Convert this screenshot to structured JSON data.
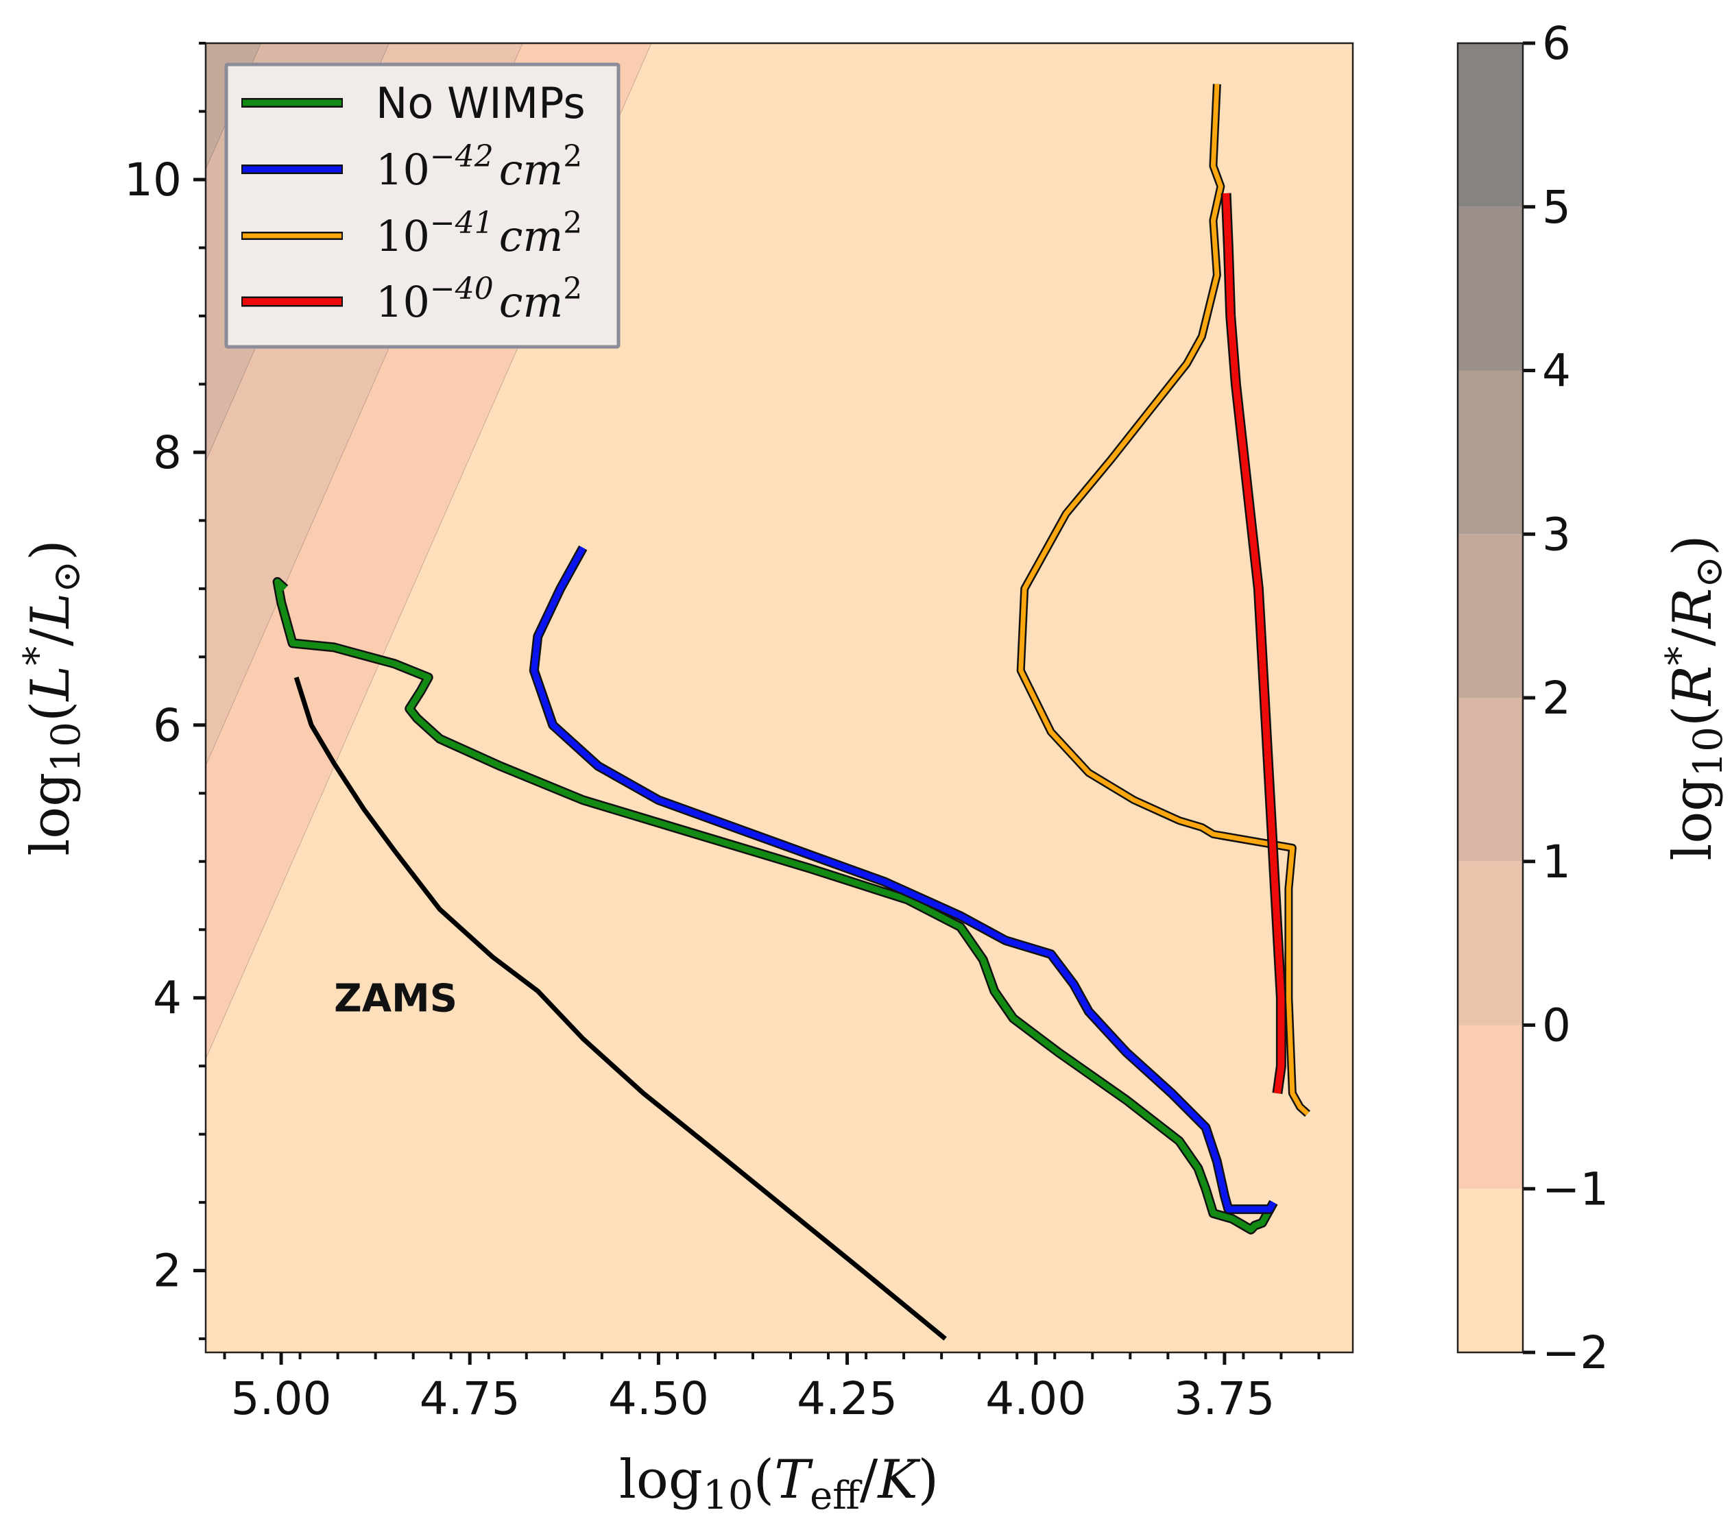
{
  "chart_data": {
    "type": "line",
    "title": "",
    "xlabel": "log10(Teff/K)",
    "ylabel": "log10(L*/L⊙)",
    "xlim": [
      5.1,
      3.58
    ],
    "ylim": [
      1.4,
      11.0
    ],
    "x_ticks": [
      5.0,
      4.75,
      4.5,
      4.25,
      4.0,
      3.75
    ],
    "x_tick_labels": [
      "5.00",
      "4.75",
      "4.50",
      "4.25",
      "4.00",
      "3.75"
    ],
    "y_ticks": [
      2,
      4,
      6,
      8,
      10
    ],
    "y_tick_labels": [
      "2",
      "4",
      "6",
      "8",
      "10"
    ],
    "colorbar": {
      "label": "log10(R*/R⊙)",
      "levels": [
        -2,
        -1,
        0,
        1,
        2,
        3,
        4,
        5,
        6
      ],
      "tick_labels": [
        "−2",
        "−1",
        "0",
        "1",
        "2",
        "3",
        "4",
        "5",
        "6"
      ],
      "colors": [
        "#fddfbc",
        "#fbcdb0",
        "#ebc2ac",
        "#d9b7a4",
        "#c4aa9a",
        "#b09e93",
        "#9a8f8a",
        "#868380"
      ]
    },
    "legend": {
      "position": "upper-left",
      "entries": [
        {
          "label": "No WIMPs",
          "series": "nowimps",
          "style": "text"
        },
        {
          "label": "10",
          "sup": "−42",
          "unit": "cm",
          "unit_sup": "2",
          "series": "s42",
          "style": "math"
        },
        {
          "label": "10",
          "sup": "−41",
          "unit": "cm",
          "unit_sup": "2",
          "series": "s41",
          "style": "math"
        },
        {
          "label": "10",
          "sup": "−40",
          "unit": "cm",
          "unit_sup": "2",
          "series": "s40",
          "style": "math"
        }
      ]
    },
    "annotations": [
      {
        "text": "ZAMS",
        "x": 4.93,
        "y": 4.0
      }
    ],
    "series": [
      {
        "id": "zams",
        "name": "ZAMS",
        "color": "#000000",
        "width": 7,
        "outline": false,
        "x": [
          4.98,
          4.96,
          4.93,
          4.89,
          4.85,
          4.79,
          4.72,
          4.66,
          4.6,
          4.52,
          4.43,
          4.33,
          4.23,
          4.12
        ],
        "y": [
          6.35,
          6.0,
          5.72,
          5.38,
          5.08,
          4.65,
          4.3,
          4.05,
          3.7,
          3.3,
          2.9,
          2.45,
          2.0,
          1.5
        ]
      },
      {
        "id": "nowimps",
        "name": "No WIMPs",
        "color": "#138a13",
        "width": 9,
        "outline": true,
        "x": [
          4.995,
          5.005,
          5.0,
          4.985,
          4.93,
          4.85,
          4.805,
          4.815,
          4.83,
          4.82,
          4.79,
          4.71,
          4.6,
          4.45,
          4.3,
          4.17,
          4.1,
          4.07,
          4.055,
          4.03,
          3.97,
          3.88,
          3.81,
          3.785,
          3.775,
          3.765,
          3.74,
          3.715,
          3.71,
          3.7,
          3.695,
          3.69
        ],
        "y": [
          7.0,
          7.05,
          6.9,
          6.6,
          6.57,
          6.45,
          6.35,
          6.25,
          6.12,
          6.05,
          5.9,
          5.7,
          5.45,
          5.2,
          4.95,
          4.72,
          4.52,
          4.28,
          4.05,
          3.85,
          3.6,
          3.25,
          2.95,
          2.75,
          2.6,
          2.42,
          2.38,
          2.3,
          2.33,
          2.35,
          2.4,
          2.45
        ]
      },
      {
        "id": "s42",
        "name": "10^-42 cm^2",
        "color": "#0a14f0",
        "width": 9,
        "outline": true,
        "x": [
          4.6,
          4.63,
          4.66,
          4.665,
          4.64,
          4.58,
          4.5,
          4.4,
          4.3,
          4.2,
          4.1,
          4.04,
          3.98,
          3.95,
          3.93,
          3.88,
          3.82,
          3.775,
          3.76,
          3.75,
          3.745,
          3.73,
          3.71,
          3.69,
          3.685
        ],
        "y": [
          7.3,
          7.0,
          6.65,
          6.4,
          6.0,
          5.7,
          5.45,
          5.25,
          5.05,
          4.85,
          4.6,
          4.42,
          4.32,
          4.1,
          3.9,
          3.6,
          3.3,
          3.05,
          2.8,
          2.55,
          2.45,
          2.45,
          2.45,
          2.45,
          2.5
        ]
      },
      {
        "id": "s41",
        "name": "10^-41 cm^2",
        "color": "#fda70e",
        "width": 7,
        "outline": true,
        "x": [
          3.76,
          3.765,
          3.755,
          3.765,
          3.76,
          3.78,
          3.8,
          3.85,
          3.9,
          3.96,
          4.015,
          4.02,
          3.98,
          3.93,
          3.87,
          3.81,
          3.78,
          3.765,
          3.66,
          3.665,
          3.665,
          3.66,
          3.65,
          3.64
        ],
        "y": [
          10.7,
          10.1,
          9.95,
          9.7,
          9.3,
          8.85,
          8.65,
          8.3,
          7.95,
          7.55,
          7.0,
          6.4,
          5.95,
          5.65,
          5.45,
          5.3,
          5.25,
          5.2,
          5.1,
          4.8,
          4.0,
          3.3,
          3.2,
          3.15
        ]
      },
      {
        "id": "s40",
        "name": "10^-40 cm^2",
        "color": "#ef0a0a",
        "width": 10,
        "outline": true,
        "x": [
          3.748,
          3.745,
          3.742,
          3.735,
          3.725,
          3.715,
          3.705,
          3.7,
          3.695,
          3.69,
          3.685,
          3.68,
          3.675,
          3.675,
          3.68
        ],
        "y": [
          9.9,
          9.5,
          9.0,
          8.5,
          8.0,
          7.5,
          7.0,
          6.5,
          6.0,
          5.5,
          5.0,
          4.5,
          4.0,
          3.5,
          3.3
        ]
      }
    ]
  }
}
